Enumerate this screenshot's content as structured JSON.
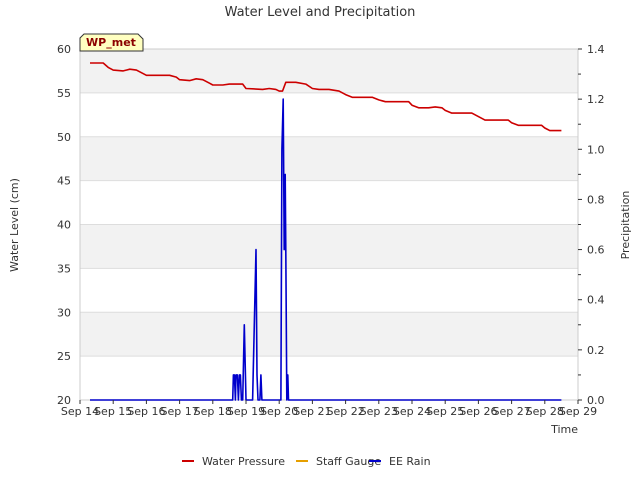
{
  "chart_data": {
    "type": "line",
    "title": "Water Level and Precipitation",
    "badge": "WP_met",
    "xlabel": "Time",
    "ylabel_left": "Water Level (cm)",
    "ylabel_right": "Precipitation",
    "x_tick_labels": [
      "Sep 14",
      "Sep 15",
      "Sep 16",
      "Sep 17",
      "Sep 18",
      "Sep 19",
      "Sep 20",
      "Sep 21",
      "Sep 22",
      "Sep 23",
      "Sep 24",
      "Sep 25",
      "Sep 26",
      "Sep 27",
      "Sep 28",
      "Sep 29"
    ],
    "xlim_days": [
      14,
      29
    ],
    "ylim_left": [
      20,
      60
    ],
    "yticks_left": [
      "20",
      "25",
      "30",
      "35",
      "40",
      "45",
      "50",
      "55",
      "60"
    ],
    "ylim_right": [
      0.0,
      1.4
    ],
    "yticks_right": [
      "0.0",
      "0.2",
      "0.4",
      "0.6",
      "0.8",
      "1.0",
      "1.2",
      "1.4"
    ],
    "grid": true,
    "banded_background": true,
    "legend_position": "bottom-center",
    "colors": {
      "water_pressure": "#cc0000",
      "staff_gauge": "#e69f00",
      "ee_rain": "#0000cc",
      "band": "#f2f2f2"
    },
    "series": [
      {
        "name": "Water Pressure",
        "axis": "left",
        "points": [
          [
            14.3,
            58.4
          ],
          [
            14.7,
            58.4
          ],
          [
            14.85,
            57.9
          ],
          [
            15.0,
            57.6
          ],
          [
            15.3,
            57.5
          ],
          [
            15.5,
            57.7
          ],
          [
            15.7,
            57.6
          ],
          [
            15.9,
            57.2
          ],
          [
            16.0,
            57.0
          ],
          [
            16.5,
            57.0
          ],
          [
            16.7,
            57.0
          ],
          [
            16.9,
            56.8
          ],
          [
            17.0,
            56.5
          ],
          [
            17.3,
            56.4
          ],
          [
            17.5,
            56.6
          ],
          [
            17.7,
            56.5
          ],
          [
            17.9,
            56.1
          ],
          [
            18.0,
            55.9
          ],
          [
            18.3,
            55.9
          ],
          [
            18.5,
            56.0
          ],
          [
            18.9,
            56.0
          ],
          [
            19.0,
            55.5
          ],
          [
            19.5,
            55.4
          ],
          [
            19.7,
            55.5
          ],
          [
            19.9,
            55.4
          ],
          [
            20.0,
            55.2
          ],
          [
            20.1,
            55.2
          ],
          [
            20.2,
            56.2
          ],
          [
            20.5,
            56.2
          ],
          [
            20.8,
            56.0
          ],
          [
            21.0,
            55.5
          ],
          [
            21.2,
            55.4
          ],
          [
            21.5,
            55.4
          ],
          [
            21.8,
            55.2
          ],
          [
            22.0,
            54.8
          ],
          [
            22.2,
            54.5
          ],
          [
            22.5,
            54.5
          ],
          [
            22.8,
            54.5
          ],
          [
            23.0,
            54.2
          ],
          [
            23.2,
            54.0
          ],
          [
            23.5,
            54.0
          ],
          [
            23.9,
            54.0
          ],
          [
            24.0,
            53.6
          ],
          [
            24.2,
            53.3
          ],
          [
            24.5,
            53.3
          ],
          [
            24.7,
            53.4
          ],
          [
            24.9,
            53.3
          ],
          [
            25.0,
            53.0
          ],
          [
            25.2,
            52.7
          ],
          [
            25.5,
            52.7
          ],
          [
            25.8,
            52.7
          ],
          [
            26.0,
            52.3
          ],
          [
            26.2,
            51.9
          ],
          [
            26.5,
            51.9
          ],
          [
            26.9,
            51.9
          ],
          [
            27.0,
            51.6
          ],
          [
            27.2,
            51.3
          ],
          [
            27.5,
            51.3
          ],
          [
            27.9,
            51.3
          ],
          [
            28.0,
            51.0
          ],
          [
            28.15,
            50.7
          ],
          [
            28.5,
            50.7
          ]
        ]
      },
      {
        "name": "Staff Gauge",
        "axis": "left",
        "points": []
      },
      {
        "name": "EE Rain",
        "axis": "right",
        "points": [
          [
            14.3,
            0
          ],
          [
            18.6,
            0
          ],
          [
            18.62,
            0.1
          ],
          [
            18.65,
            0.1
          ],
          [
            18.68,
            0
          ],
          [
            18.7,
            0.1
          ],
          [
            18.74,
            0.1
          ],
          [
            18.77,
            0
          ],
          [
            18.8,
            0.1
          ],
          [
            18.83,
            0.1
          ],
          [
            18.86,
            0
          ],
          [
            18.9,
            0
          ],
          [
            18.95,
            0.3
          ],
          [
            19.0,
            0
          ],
          [
            19.2,
            0
          ],
          [
            19.25,
            0.3
          ],
          [
            19.3,
            0.6
          ],
          [
            19.33,
            0.1
          ],
          [
            19.36,
            0
          ],
          [
            19.42,
            0
          ],
          [
            19.45,
            0.1
          ],
          [
            19.48,
            0
          ],
          [
            20.05,
            0
          ],
          [
            20.08,
            1.0
          ],
          [
            20.12,
            1.2
          ],
          [
            20.15,
            0.6
          ],
          [
            20.18,
            0.9
          ],
          [
            20.2,
            0.6
          ],
          [
            20.23,
            0
          ],
          [
            20.26,
            0.1
          ],
          [
            20.28,
            0
          ],
          [
            28.5,
            0
          ]
        ]
      }
    ]
  }
}
